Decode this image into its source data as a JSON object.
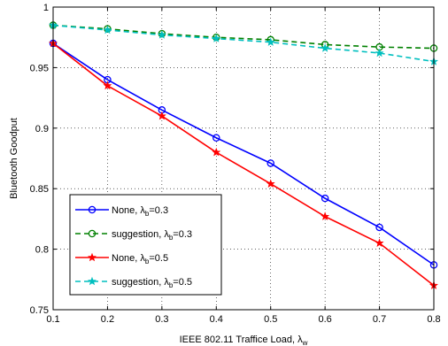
{
  "chart_data": {
    "type": "line",
    "title": "",
    "xlabel": {
      "text": "IEEE 802.11 Traffice Load, λ",
      "sub": "w"
    },
    "ylabel": "Bluetooth Goodput",
    "xlim": [
      0.1,
      0.8
    ],
    "ylim": [
      0.75,
      1.0
    ],
    "grid": true,
    "legend_position": "bottom-left",
    "x": [
      0.1,
      0.2,
      0.3,
      0.4,
      0.5,
      0.6,
      0.7,
      0.8
    ],
    "x_ticks": [
      "0.1",
      "0.2",
      "0.3",
      "0.4",
      "0.5",
      "0.6",
      "0.7",
      "0.8"
    ],
    "y_ticks": [
      {
        "value": 0.75,
        "label": "0.75"
      },
      {
        "value": 0.8,
        "label": "0.8"
      },
      {
        "value": 0.85,
        "label": "0.85"
      },
      {
        "value": 0.9,
        "label": "0.9"
      },
      {
        "value": 0.95,
        "label": "0.95"
      },
      {
        "value": 1.0,
        "label": "1"
      }
    ],
    "series": [
      {
        "key": "none-03",
        "legend": {
          "pre": "None, λ",
          "sub": "b",
          "post": "=0.3"
        },
        "color": "#0000ff",
        "dash": "solid",
        "marker": "circle",
        "values": [
          0.97,
          0.94,
          0.915,
          0.892,
          0.871,
          0.842,
          0.818,
          0.787
        ]
      },
      {
        "key": "suggestion-03",
        "legend": {
          "pre": "suggestion, λ",
          "sub": "b",
          "post": "=0.3"
        },
        "color": "#008000",
        "dash": "dashed",
        "marker": "circle",
        "values": [
          0.985,
          0.982,
          0.978,
          0.975,
          0.973,
          0.969,
          0.967,
          0.966
        ]
      },
      {
        "key": "none-05",
        "legend": {
          "pre": "None, λ",
          "sub": "b",
          "post": "=0.5"
        },
        "color": "#ff0000",
        "dash": "solid",
        "marker": "star",
        "values": [
          0.97,
          0.935,
          0.91,
          0.88,
          0.854,
          0.827,
          0.805,
          0.77
        ]
      },
      {
        "key": "suggestion-05",
        "legend": {
          "pre": "suggestion, λ",
          "sub": "b",
          "post": "=0.5"
        },
        "color": "#00bfbf",
        "dash": "dashed",
        "marker": "star",
        "values": [
          0.985,
          0.981,
          0.977,
          0.974,
          0.971,
          0.966,
          0.962,
          0.955
        ]
      }
    ]
  }
}
